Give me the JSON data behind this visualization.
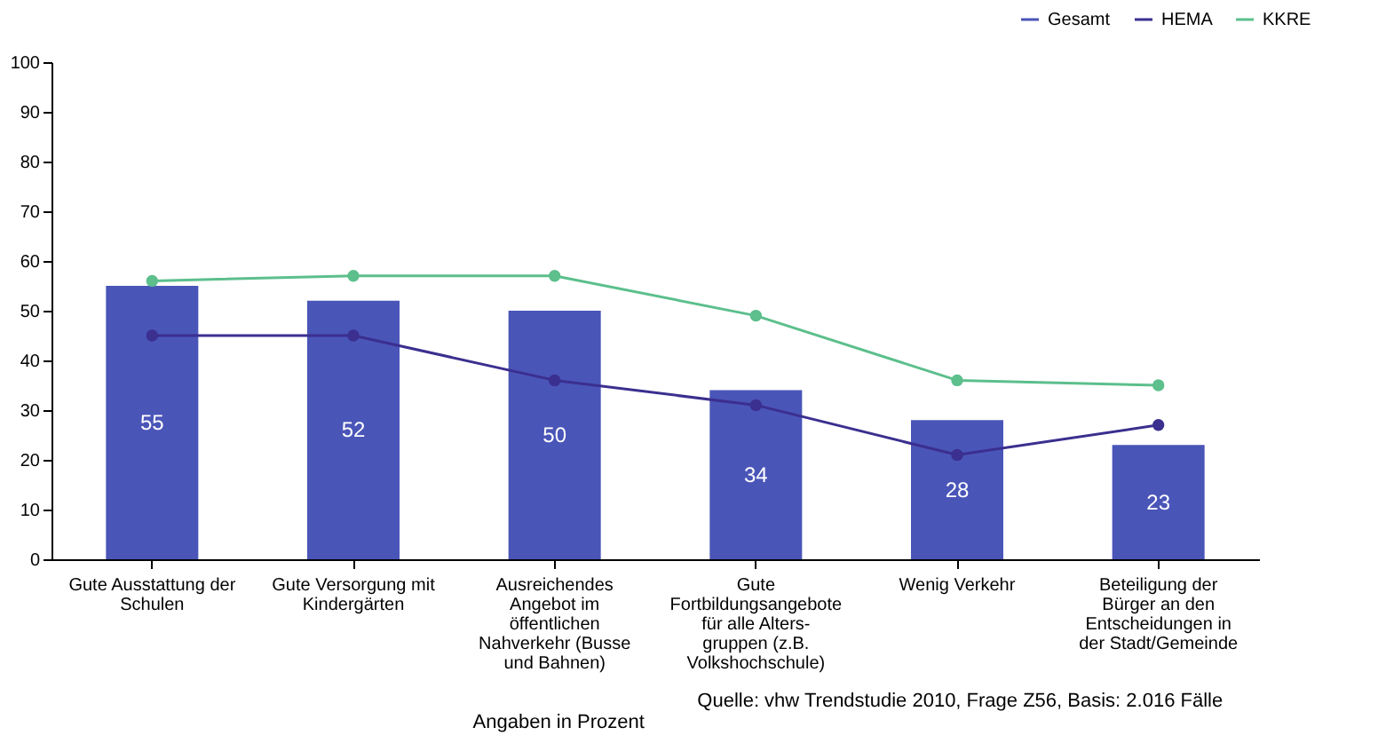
{
  "chart_data": {
    "type": "bar",
    "categories": [
      "Gute Ausstattung der Schulen",
      "Gute Versorgung mit Kindergärten",
      "Ausreichendes Angebot im öffentlichen Nahverkehr (Busse und Bahnen)",
      "Gute Fortbildungsangebote für alle Alters- gruppen (z.B. Volkshochschule)",
      "Wenig Verkehr",
      "Beteiligung der Bürger an den Entscheidungen in der Stadt/Gemeinde"
    ],
    "series": [
      {
        "name": "Gesamt",
        "color": "#4a55b8",
        "values": [
          55,
          52,
          50,
          34,
          28,
          23
        ],
        "value_labels": [
          "55",
          "52",
          "50",
          "34",
          "28",
          "23"
        ]
      },
      {
        "name": "HEMA",
        "type": "line",
        "color": "#3b2f8f",
        "values": [
          45,
          45,
          36,
          31,
          21,
          27
        ]
      },
      {
        "name": "KKRE",
        "type": "line",
        "color": "#5cbf8c",
        "values": [
          56,
          57,
          57,
          49,
          36,
          35
        ]
      }
    ],
    "ylim": [
      0,
      100
    ],
    "yticks": [
      0,
      10,
      20,
      30,
      40,
      50,
      60,
      70,
      80,
      90,
      100
    ],
    "grid": false,
    "legend": "top right",
    "marker": "circle",
    "line_style": "solid",
    "annotations": [
      "Angaben in Prozent",
      "Quelle: vhw Trendstudie 2010, Frage Z56, Basis: 2.016 Fälle"
    ]
  }
}
